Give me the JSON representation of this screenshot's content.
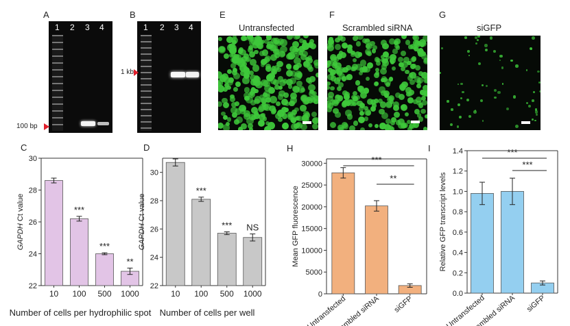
{
  "panel_labels": {
    "A": "A",
    "B": "B",
    "C": "C",
    "D": "D",
    "E": "E",
    "F": "F",
    "G": "G",
    "H": "H",
    "I": "I"
  },
  "gels": {
    "A": {
      "lanes": [
        "1",
        "2",
        "3",
        "4"
      ],
      "marker_label": "100 bp"
    },
    "B": {
      "lanes": [
        "1",
        "2",
        "3",
        "4"
      ],
      "marker_label": "1 kb"
    }
  },
  "micrographs": {
    "E": {
      "title": "Untransfected"
    },
    "F": {
      "title": "Scrambled siRNA"
    },
    "G": {
      "title": "siGFP"
    }
  },
  "colors": {
    "panel_c_bars": "#e2c4e6",
    "panel_d_bars": "#c8c8c8",
    "panel_h_bars": "#f2b07e",
    "panel_i_bars": "#94cff0",
    "gfp_cells": "#3ec83a",
    "marker_arrow": "#e0202c"
  },
  "chart_data": [
    {
      "panel": "C",
      "type": "bar",
      "categories": [
        "10",
        "100",
        "500",
        "1000"
      ],
      "values": [
        28.6,
        26.2,
        24.0,
        22.9
      ],
      "errors": [
        0.15,
        0.15,
        0.06,
        0.2
      ],
      "annotations": [
        "",
        "***",
        "***",
        "**"
      ],
      "ylabel_italic": "GAPDH",
      "ylabel": " Ct value",
      "xlabel": "Number of cells per hydrophilic spot",
      "ylim": [
        22,
        30
      ],
      "yticks": [
        "22",
        "24",
        "26",
        "28",
        "30"
      ],
      "ytick_values": [
        22,
        24,
        26,
        28,
        30
      ]
    },
    {
      "panel": "D",
      "type": "bar",
      "categories": [
        "10",
        "100",
        "500",
        "1000"
      ],
      "values": [
        30.7,
        28.1,
        25.7,
        25.4
      ],
      "errors": [
        0.25,
        0.15,
        0.1,
        0.25
      ],
      "annotations": [
        "",
        "***",
        "***",
        "NS"
      ],
      "ylabel_italic": "GAPDH",
      "ylabel": " Ct value",
      "xlabel": "Number of cells per well",
      "ylim": [
        22,
        31
      ],
      "yticks": [
        "22",
        "24",
        "26",
        "28",
        "30"
      ],
      "ytick_values": [
        22,
        24,
        26,
        28,
        30
      ]
    },
    {
      "panel": "H",
      "type": "bar",
      "categories": [
        "Untransfected",
        "Scrambled siRNA",
        "siGFP"
      ],
      "values": [
        27800,
        20200,
        1900
      ],
      "errors": [
        1200,
        1200,
        400
      ],
      "ylabel": "Mean GFP fluorescence",
      "ylim": [
        0,
        31000
      ],
      "yticks": [
        "0",
        "5000",
        "10000",
        "15000",
        "20000",
        "25000",
        "30000"
      ],
      "ytick_values": [
        0,
        5000,
        10000,
        15000,
        20000,
        25000,
        30000
      ],
      "brackets": [
        {
          "from": 0,
          "to": 2,
          "label": "***"
        },
        {
          "from": 1,
          "to": 2,
          "label": "**"
        }
      ]
    },
    {
      "panel": "I",
      "type": "bar",
      "categories": [
        "Untransfected",
        "Scrambled siRNA",
        "siGFP"
      ],
      "values": [
        0.98,
        1.0,
        0.1
      ],
      "errors": [
        0.11,
        0.13,
        0.02
      ],
      "ylabel": "Relative GFP transcript levels",
      "ylim": [
        0,
        1.4
      ],
      "yticks": [
        "0.0",
        "0.2",
        "0.4",
        "0.6",
        "0.8",
        "1.0",
        "1.2",
        "1.4"
      ],
      "ytick_values": [
        0,
        0.2,
        0.4,
        0.6,
        0.8,
        1.0,
        1.2,
        1.4
      ],
      "brackets": [
        {
          "from": 0,
          "to": 2,
          "label": "***"
        },
        {
          "from": 1,
          "to": 2,
          "label": "***"
        }
      ]
    }
  ]
}
